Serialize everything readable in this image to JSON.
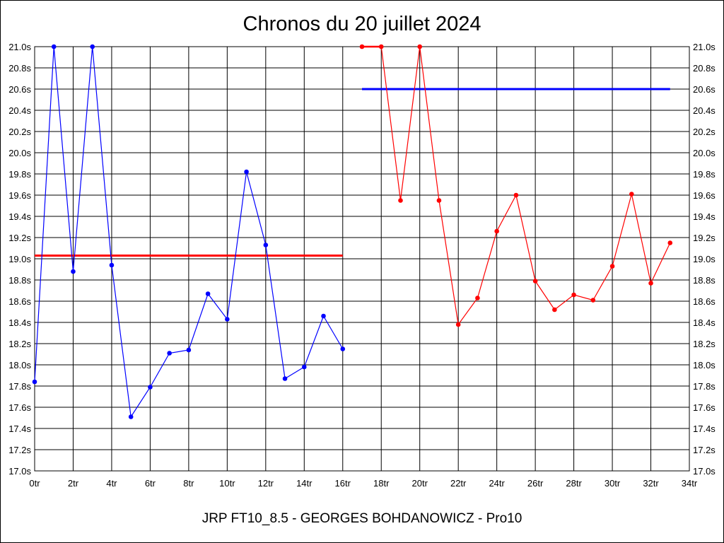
{
  "chart_data": {
    "type": "line",
    "title": "Chronos du 20 juillet 2024",
    "footer": "JRP FT10_8.5 - GEORGES BOHDANOWICZ - Pro10",
    "xlim": [
      0,
      34
    ],
    "ylim": [
      17.0,
      21.0
    ],
    "x_ticks": [
      {
        "value": 0,
        "label": "0tr"
      },
      {
        "value": 2,
        "label": "2tr"
      },
      {
        "value": 4,
        "label": "4tr"
      },
      {
        "value": 6,
        "label": "6tr"
      },
      {
        "value": 8,
        "label": "8tr"
      },
      {
        "value": 10,
        "label": "10tr"
      },
      {
        "value": 12,
        "label": "12tr"
      },
      {
        "value": 14,
        "label": "14tr"
      },
      {
        "value": 16,
        "label": "16tr"
      },
      {
        "value": 18,
        "label": "18tr"
      },
      {
        "value": 20,
        "label": "20tr"
      },
      {
        "value": 22,
        "label": "22tr"
      },
      {
        "value": 24,
        "label": "24tr"
      },
      {
        "value": 26,
        "label": "26tr"
      },
      {
        "value": 28,
        "label": "28tr"
      },
      {
        "value": 30,
        "label": "30tr"
      },
      {
        "value": 32,
        "label": "32tr"
      },
      {
        "value": 34,
        "label": "34tr"
      }
    ],
    "y_ticks": [
      {
        "value": 17.0,
        "label": "17.0s"
      },
      {
        "value": 17.2,
        "label": "17.2s"
      },
      {
        "value": 17.4,
        "label": "17.4s"
      },
      {
        "value": 17.6,
        "label": "17.6s"
      },
      {
        "value": 17.8,
        "label": "17.8s"
      },
      {
        "value": 18.0,
        "label": "18.0s"
      },
      {
        "value": 18.2,
        "label": "18.2s"
      },
      {
        "value": 18.4,
        "label": "18.4s"
      },
      {
        "value": 18.6,
        "label": "18.6s"
      },
      {
        "value": 18.8,
        "label": "18.8s"
      },
      {
        "value": 19.0,
        "label": "19.0s"
      },
      {
        "value": 19.2,
        "label": "19.2s"
      },
      {
        "value": 19.4,
        "label": "19.4s"
      },
      {
        "value": 19.6,
        "label": "19.6s"
      },
      {
        "value": 19.8,
        "label": "19.8s"
      },
      {
        "value": 20.0,
        "label": "20.0s"
      },
      {
        "value": 20.2,
        "label": "20.2s"
      },
      {
        "value": 20.4,
        "label": "20.4s"
      },
      {
        "value": 20.6,
        "label": "20.6s"
      },
      {
        "value": 20.8,
        "label": "20.8s"
      },
      {
        "value": 21.0,
        "label": "21.0s"
      }
    ],
    "grid": true,
    "y_axis_labels": "both sides",
    "series": [
      {
        "color": "#0000ff",
        "x": [
          0,
          1,
          2,
          3,
          4,
          5,
          6,
          7,
          8,
          9,
          10,
          11,
          12,
          13,
          14,
          15,
          16
        ],
        "y": [
          17.84,
          21.0,
          18.88,
          21.0,
          18.94,
          17.51,
          17.79,
          18.11,
          18.14,
          18.67,
          18.43,
          19.82,
          19.13,
          17.87,
          17.98,
          18.46,
          18.15
        ]
      },
      {
        "color": "#ff0000",
        "x": [
          17,
          18,
          19,
          20,
          21,
          22,
          23,
          24,
          25,
          26,
          27,
          28,
          29,
          30,
          31,
          32,
          33
        ],
        "y": [
          21.0,
          21.0,
          19.55,
          21.0,
          19.55,
          18.38,
          18.63,
          19.26,
          19.6,
          18.79,
          18.52,
          18.66,
          18.61,
          18.93,
          19.61,
          18.77,
          19.15
        ]
      }
    ],
    "reference_lines": [
      {
        "color": "#ff0000",
        "x": [
          0,
          16
        ],
        "y": 19.03
      },
      {
        "color": "#0000ff",
        "x": [
          17,
          33
        ],
        "y": 20.6
      }
    ]
  }
}
